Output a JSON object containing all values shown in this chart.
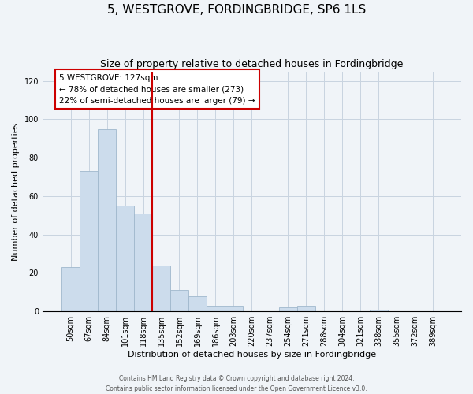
{
  "title": "5, WESTGROVE, FORDINGBRIDGE, SP6 1LS",
  "subtitle": "Size of property relative to detached houses in Fordingbridge",
  "xlabel": "Distribution of detached houses by size in Fordingbridge",
  "ylabel": "Number of detached properties",
  "bar_labels": [
    "50sqm",
    "67sqm",
    "84sqm",
    "101sqm",
    "118sqm",
    "135sqm",
    "152sqm",
    "169sqm",
    "186sqm",
    "203sqm",
    "220sqm",
    "237sqm",
    "254sqm",
    "271sqm",
    "288sqm",
    "304sqm",
    "321sqm",
    "338sqm",
    "355sqm",
    "372sqm",
    "389sqm"
  ],
  "bar_values": [
    23,
    73,
    95,
    55,
    51,
    24,
    11,
    8,
    3,
    3,
    0,
    0,
    2,
    3,
    0,
    0,
    0,
    1,
    0,
    0,
    0
  ],
  "bar_color": "#ccdcec",
  "bar_edge_color": "#a0b8cc",
  "ref_line_color": "#cc0000",
  "ylim": [
    0,
    125
  ],
  "yticks": [
    0,
    20,
    40,
    60,
    80,
    100,
    120
  ],
  "annotation_text": "5 WESTGROVE: 127sqm\n← 78% of detached houses are smaller (273)\n22% of semi-detached houses are larger (79) →",
  "footer_line1": "Contains HM Land Registry data © Crown copyright and database right 2024.",
  "footer_line2": "Contains public sector information licensed under the Open Government Licence v3.0.",
  "bg_color": "#f0f4f8",
  "grid_color": "#c8d4e0",
  "title_fontsize": 11,
  "subtitle_fontsize": 9,
  "axis_fontsize": 8,
  "tick_fontsize": 7,
  "footer_fontsize": 5.5,
  "annot_fontsize": 7.5
}
